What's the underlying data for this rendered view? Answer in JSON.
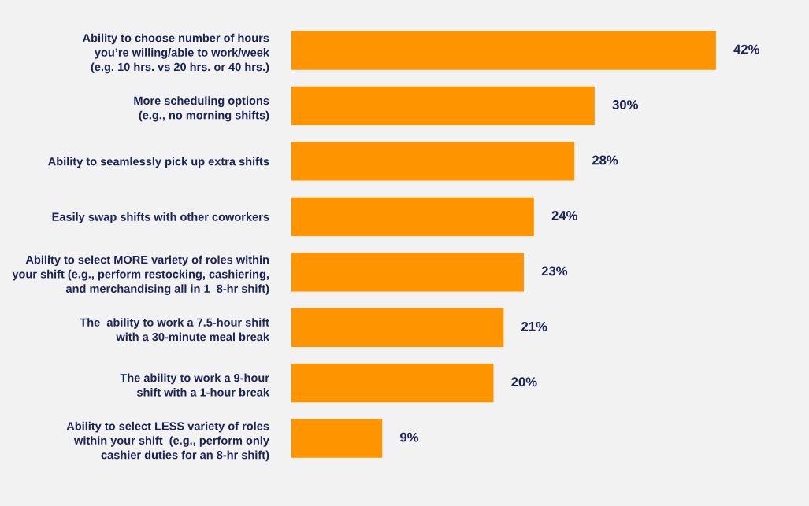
{
  "chart_data": {
    "type": "bar",
    "orientation": "horizontal",
    "categories": [
      "Ability to choose number of hours\nyou’re willing/able to work/week\n(e.g. 10 hrs. vs 20 hrs. or 40 hrs.)",
      "More scheduling options\n(e.g., no morning shifts)",
      "Ability to seamlessly pick up extra shifts",
      "Easily swap shifts with other coworkers",
      "Ability to select MORE variety of roles within\nyour shift (e.g., perform restocking, cashiering,\nand merchandising all in 1  8-hr shift)",
      "The  ability to work a 7.5-hour shift\nwith a 30-minute meal break",
      "The ability to work a 9-hour\nshift with a 1-hour break",
      "Ability to select LESS variety of roles\nwithin your shift  (e.g., perform only\ncashier duties for an 8-hr shift)"
    ],
    "values": [
      42,
      30,
      28,
      24,
      23,
      21,
      20,
      9
    ],
    "value_labels": [
      "42%",
      "30%",
      "28%",
      "24%",
      "23%",
      "21%",
      "20%",
      "9%"
    ],
    "color": "#fd9400",
    "grid": false,
    "legend": false
  }
}
